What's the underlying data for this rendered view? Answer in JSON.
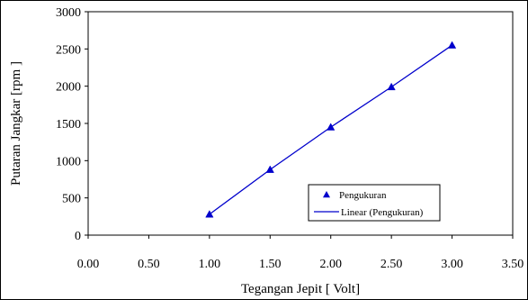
{
  "chart_data": {
    "type": "line",
    "xlabel": "Tegangan Jepit [ Volt]",
    "ylabel": "Putaran Jangkar [rpm ]",
    "xlim": [
      0,
      3.5
    ],
    "ylim": [
      0,
      3000
    ],
    "x_ticks": [
      "0.00",
      "0.50",
      "1.00",
      "1.50",
      "2.00",
      "2.50",
      "3.00",
      "3.50"
    ],
    "y_ticks": [
      "0",
      "500",
      "1000",
      "1500",
      "2000",
      "2500",
      "3000"
    ],
    "grid": true,
    "legend_position": "bottom-right",
    "series": [
      {
        "name": "Pengukuran",
        "kind": "scatter",
        "marker": "triangle",
        "color": "#0000cc",
        "x": [
          1.0,
          1.5,
          2.0,
          2.5,
          3.0
        ],
        "y": [
          280,
          880,
          1450,
          1990,
          2550
        ]
      },
      {
        "name": "Linear (Pengukuran)",
        "kind": "line",
        "color": "#0000cc",
        "x": [
          1.0,
          1.5,
          2.0,
          2.5,
          3.0
        ],
        "y": [
          280,
          880,
          1450,
          1990,
          2550
        ]
      }
    ]
  }
}
